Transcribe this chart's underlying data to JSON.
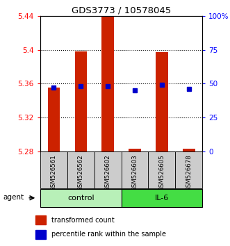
{
  "title": "GDS3773 / 10578045",
  "samples": [
    "GSM526561",
    "GSM526562",
    "GSM526602",
    "GSM526603",
    "GSM526605",
    "GSM526678"
  ],
  "groups": [
    {
      "label": "control",
      "indices": [
        0,
        1,
        2
      ]
    },
    {
      "label": "IL-6",
      "indices": [
        3,
        4,
        5
      ]
    }
  ],
  "bar_values": [
    5.355,
    5.398,
    5.44,
    5.283,
    5.397,
    5.283
  ],
  "bar_base": 5.28,
  "percentile_values": [
    47,
    48,
    48,
    45,
    49,
    46
  ],
  "ymin": 5.28,
  "ymax": 5.44,
  "yticks": [
    5.28,
    5.32,
    5.36,
    5.4,
    5.44
  ],
  "ytick_labels": [
    "5.28",
    "5.32",
    "5.36",
    "5.4",
    "5.44"
  ],
  "y2min": 0,
  "y2max": 100,
  "y2ticks": [
    0,
    25,
    50,
    75,
    100
  ],
  "y2tick_labels": [
    "0",
    "25",
    "50",
    "75",
    "100%"
  ],
  "bar_color": "#cc2200",
  "percentile_color": "#0000cc",
  "control_color": "#b8f0b8",
  "il6_color": "#44dd44",
  "sample_row_color": "#cccccc",
  "bar_width": 0.45,
  "agent_label": "agent",
  "legend_bar_label": "transformed count",
  "legend_pct_label": "percentile rank within the sample"
}
